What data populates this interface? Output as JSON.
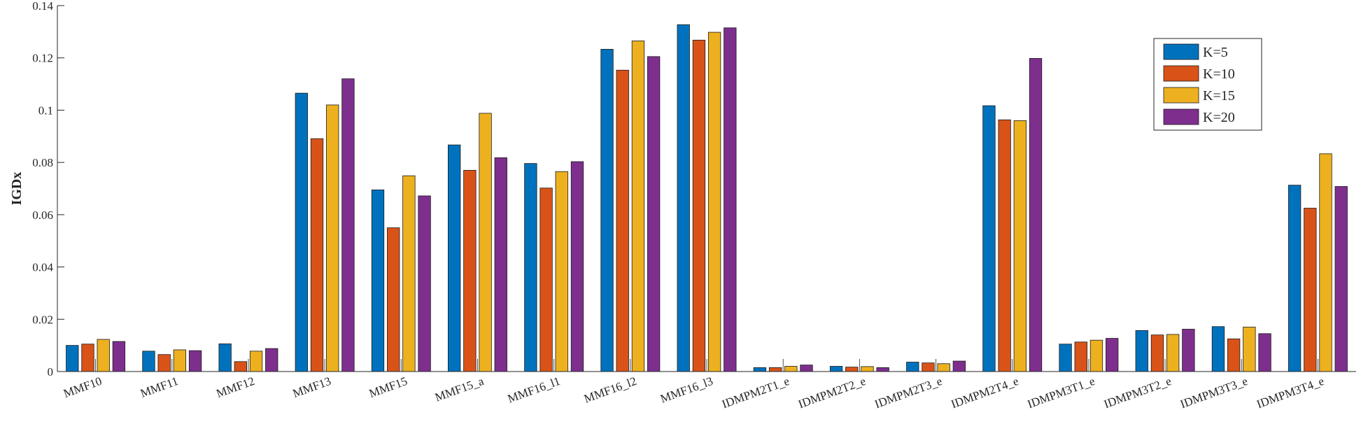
{
  "chart_data": {
    "type": "bar",
    "ylabel": "IGDx",
    "xlabel": "",
    "ylim": [
      0,
      0.14
    ],
    "yticks": [
      "0",
      "0.02",
      "0.04",
      "0.06",
      "0.08",
      "0.1",
      "0.12",
      "0.14"
    ],
    "ytick_values": [
      0,
      0.02,
      0.04,
      0.06,
      0.08,
      0.1,
      0.12,
      0.14
    ],
    "legend_position": "top-right",
    "grid": false,
    "categories": [
      "MMF10",
      "MMF11",
      "MMF12",
      "MMF13",
      "MMF15",
      "MMF15_a",
      "MMF16_l1",
      "MMF16_l2",
      "MMF16_l3",
      "IDMPM2T1_e",
      "IDMPM2T2_e",
      "IDMPM2T3_e",
      "IDMPM2T4_e",
      "IDMPM3T1_e",
      "IDMPM3T2_e",
      "IDMPM3T3_e",
      "IDMPM3T4_e"
    ],
    "series": [
      {
        "name": "K=5",
        "color": "#0072BD",
        "values": [
          0.01,
          0.0078,
          0.0106,
          0.1065,
          0.0695,
          0.0867,
          0.0796,
          0.1233,
          0.1327,
          0.0015,
          0.002,
          0.0036,
          0.1017,
          0.0105,
          0.0157,
          0.0172,
          0.0713
        ]
      },
      {
        "name": "K=10",
        "color": "#D95319",
        "values": [
          0.0105,
          0.0065,
          0.0038,
          0.0891,
          0.055,
          0.077,
          0.0702,
          0.1153,
          0.1268,
          0.0015,
          0.0017,
          0.0033,
          0.0963,
          0.0113,
          0.014,
          0.0125,
          0.0625
        ]
      },
      {
        "name": "K=15",
        "color": "#EDB120",
        "values": [
          0.0123,
          0.0083,
          0.0078,
          0.102,
          0.0749,
          0.0988,
          0.0765,
          0.1265,
          0.1298,
          0.002,
          0.0019,
          0.003,
          0.096,
          0.012,
          0.0142,
          0.017,
          0.0833
        ]
      },
      {
        "name": "K=20",
        "color": "#7E2F8E",
        "values": [
          0.0115,
          0.008,
          0.0088,
          0.112,
          0.0672,
          0.0818,
          0.0803,
          0.1205,
          0.1315,
          0.0025,
          0.0015,
          0.004,
          0.1198,
          0.0127,
          0.0162,
          0.0145,
          0.0708
        ]
      }
    ]
  }
}
